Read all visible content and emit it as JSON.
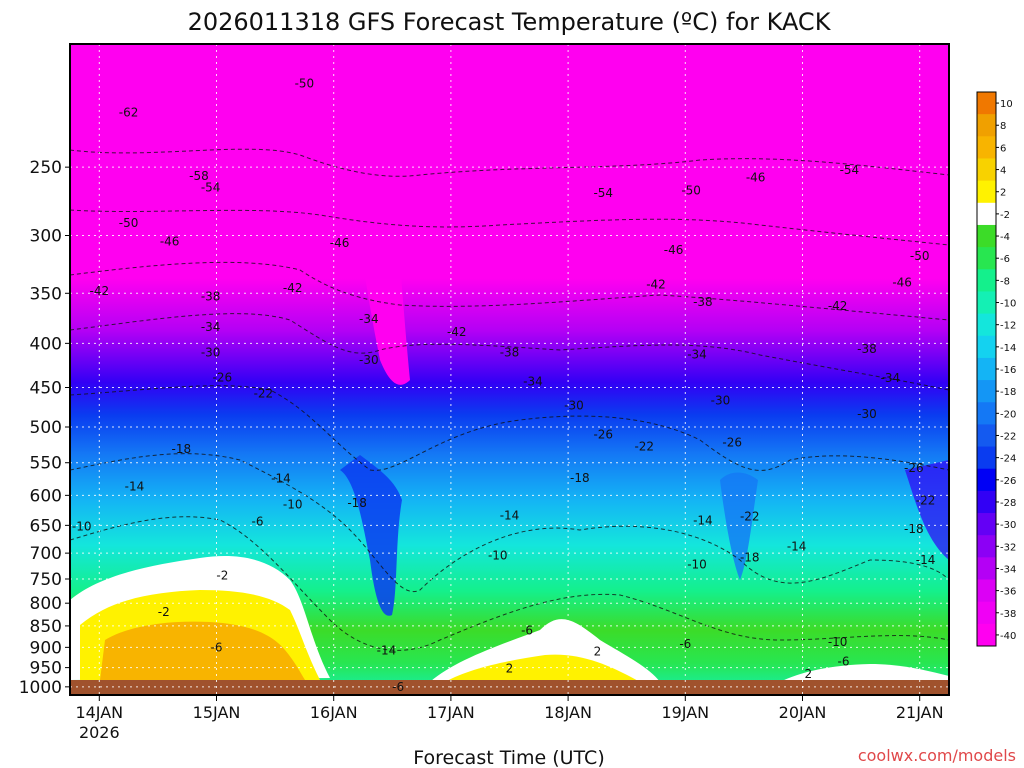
{
  "chart_data": {
    "type": "heatmap",
    "title": "2026011318 GFS Forecast Temperature (ºC) for KACK",
    "xlabel": "Forecast Time (UTC)",
    "ylabel": "",
    "y_scale": "log",
    "y_axis_reversed": true,
    "ylim": [
      1022,
      180
    ],
    "y_ticks": [
      250,
      300,
      350,
      400,
      450,
      500,
      550,
      600,
      650,
      700,
      750,
      800,
      850,
      900,
      950,
      1000
    ],
    "x_ticks": [
      {
        "label": "14JAN",
        "sub": "2026",
        "day": 1
      },
      {
        "label": "15JAN",
        "sub": "",
        "day": 2
      },
      {
        "label": "16JAN",
        "sub": "",
        "day": 3
      },
      {
        "label": "17JAN",
        "sub": "",
        "day": 4
      },
      {
        "label": "18JAN",
        "sub": "",
        "day": 5
      },
      {
        "label": "19JAN",
        "sub": "",
        "day": 6
      },
      {
        "label": "20JAN",
        "sub": "",
        "day": 7
      },
      {
        "label": "21JAN",
        "sub": "",
        "day": 8
      }
    ],
    "xlim_days": [
      0.75,
      8.25
    ],
    "grid": true,
    "colorbar": {
      "levels": [
        10,
        8,
        6,
        4,
        2,
        -2,
        -4,
        -6,
        -8,
        -10,
        -12,
        -14,
        -16,
        -18,
        -20,
        -22,
        -24,
        -26,
        -28,
        -30,
        -32,
        -34,
        -36,
        -38,
        -40
      ],
      "colors": [
        "#f07800",
        "#f0a000",
        "#f8b400",
        "#f8d200",
        "#fff200",
        "#ffffff",
        "#3cdc28",
        "#28e650",
        "#14f08c",
        "#14f0b4",
        "#14e6dc",
        "#14d2f0",
        "#14b4f5",
        "#1496f5",
        "#1478f5",
        "#145af0",
        "#0a3cf0",
        "#0000f5",
        "#3200f5",
        "#6400f5",
        "#8c00f5",
        "#b400f5",
        "#dc00f5",
        "#f000f5",
        "#ff00f0"
      ]
    },
    "contour_labels": [
      {
        "text": "-62",
        "day": 1.25,
        "p": 216
      },
      {
        "text": "-50",
        "day": 2.75,
        "p": 200
      },
      {
        "text": "-58",
        "day": 1.85,
        "p": 256
      },
      {
        "text": "-54",
        "day": 1.95,
        "p": 264
      },
      {
        "text": "-54",
        "day": 5.3,
        "p": 268
      },
      {
        "text": "-50",
        "day": 6.05,
        "p": 266
      },
      {
        "text": "-46",
        "day": 6.6,
        "p": 257
      },
      {
        "text": "-54",
        "day": 7.4,
        "p": 252
      },
      {
        "text": "-50",
        "day": 1.25,
        "p": 290
      },
      {
        "text": "-46",
        "day": 1.6,
        "p": 305
      },
      {
        "text": "-46",
        "day": 3.05,
        "p": 306
      },
      {
        "text": "-46",
        "day": 5.9,
        "p": 312
      },
      {
        "text": "-50",
        "day": 8.0,
        "p": 317
      },
      {
        "text": "-42",
        "day": 1.0,
        "p": 348
      },
      {
        "text": "-38",
        "day": 1.95,
        "p": 353
      },
      {
        "text": "-42",
        "day": 2.65,
        "p": 345
      },
      {
        "text": "-46",
        "day": 7.85,
        "p": 340
      },
      {
        "text": "-42",
        "day": 5.75,
        "p": 342
      },
      {
        "text": "-38",
        "day": 6.15,
        "p": 358
      },
      {
        "text": "-42",
        "day": 7.3,
        "p": 362
      },
      {
        "text": "-34",
        "day": 1.95,
        "p": 383
      },
      {
        "text": "-34",
        "day": 3.3,
        "p": 375
      },
      {
        "text": "-42",
        "day": 4.05,
        "p": 388
      },
      {
        "text": "-30",
        "day": 1.95,
        "p": 410
      },
      {
        "text": "-30",
        "day": 3.3,
        "p": 418
      },
      {
        "text": "-38",
        "day": 4.5,
        "p": 410
      },
      {
        "text": "-34",
        "day": 6.1,
        "p": 412
      },
      {
        "text": "-38",
        "day": 7.55,
        "p": 406
      },
      {
        "text": "-26",
        "day": 2.05,
        "p": 438
      },
      {
        "text": "-22",
        "day": 2.4,
        "p": 457
      },
      {
        "text": "-34",
        "day": 4.7,
        "p": 443
      },
      {
        "text": "-30",
        "day": 5.05,
        "p": 472
      },
      {
        "text": "-34",
        "day": 7.75,
        "p": 439
      },
      {
        "text": "-30",
        "day": 6.3,
        "p": 466
      },
      {
        "text": "-30",
        "day": 7.55,
        "p": 483
      },
      {
        "text": "-26",
        "day": 5.3,
        "p": 510
      },
      {
        "text": "-26",
        "day": 6.4,
        "p": 521
      },
      {
        "text": "-22",
        "day": 5.65,
        "p": 527
      },
      {
        "text": "-26",
        "day": 7.95,
        "p": 558
      },
      {
        "text": "-18",
        "day": 1.7,
        "p": 530
      },
      {
        "text": "-18",
        "day": 5.1,
        "p": 573
      },
      {
        "text": "-22",
        "day": 8.05,
        "p": 608
      },
      {
        "text": "-14",
        "day": 1.3,
        "p": 586
      },
      {
        "text": "-14",
        "day": 2.55,
        "p": 574
      },
      {
        "text": "-18",
        "day": 3.2,
        "p": 612
      },
      {
        "text": "-14",
        "day": 4.5,
        "p": 633
      },
      {
        "text": "-10",
        "day": 0.85,
        "p": 652
      },
      {
        "text": "-10",
        "day": 2.65,
        "p": 615
      },
      {
        "text": "-14",
        "day": 6.15,
        "p": 642
      },
      {
        "text": "-22",
        "day": 6.55,
        "p": 635
      },
      {
        "text": "-18",
        "day": 7.95,
        "p": 656
      },
      {
        "text": "-6",
        "day": 2.35,
        "p": 643
      },
      {
        "text": "-14",
        "day": 6.95,
        "p": 688
      },
      {
        "text": "-18",
        "day": 6.55,
        "p": 708
      },
      {
        "text": "-10",
        "day": 4.4,
        "p": 704
      },
      {
        "text": "-14",
        "day": 8.05,
        "p": 713
      },
      {
        "text": "-2",
        "day": 2.05,
        "p": 743
      },
      {
        "text": "-10",
        "day": 6.1,
        "p": 722
      },
      {
        "text": "-2",
        "day": 1.55,
        "p": 819
      },
      {
        "text": "-6",
        "day": 4.65,
        "p": 860
      },
      {
        "text": "-6",
        "day": 2.0,
        "p": 900
      },
      {
        "text": "-14",
        "day": 3.45,
        "p": 908
      },
      {
        "text": "-10",
        "day": 7.3,
        "p": 887
      },
      {
        "text": "-6",
        "day": 6.0,
        "p": 892
      },
      {
        "text": "2",
        "day": 5.25,
        "p": 910
      },
      {
        "text": "-6",
        "day": 7.35,
        "p": 935
      },
      {
        "text": "2",
        "day": 4.5,
        "p": 952
      },
      {
        "text": "2",
        "day": 7.05,
        "p": 966
      },
      {
        "text": "-6",
        "day": 3.55,
        "p": 1001
      }
    ]
  },
  "watermark": "coolwx.com/models"
}
